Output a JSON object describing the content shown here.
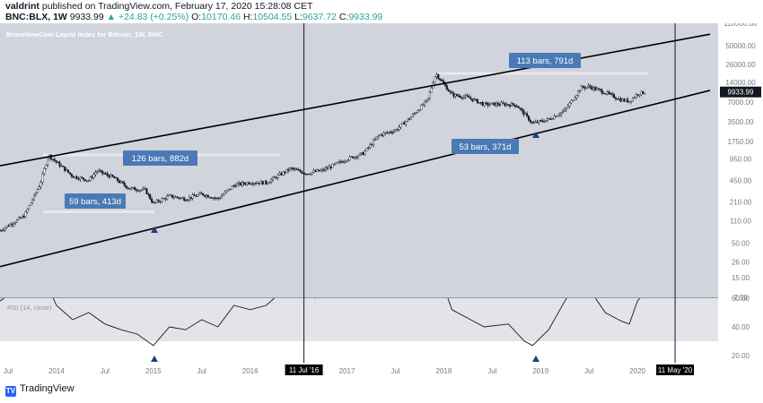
{
  "header": {
    "author": "valdrint",
    "published_text": "published on TradingView.com, February 17, 2020 15:28:08 CET",
    "symbol": "BNC:BLX, 1W",
    "last_price": "9933.99",
    "change": "▲ +24.83 (+0.25%)",
    "open_label": "O:",
    "open": "10170.46",
    "high_label": "H:",
    "high": "10504.55",
    "low_label": "L:",
    "low": "9637.72",
    "close_label": "C:",
    "close": "9933.99"
  },
  "footer": {
    "brand": "TradingView",
    "brand_icon": "tradingview-logo-icon"
  },
  "colors": {
    "pane_bg": "#d1d4dc",
    "rsi_band": "#e2e4ea",
    "annotation_bg": "#4a7ab5",
    "arrow": "#1e3f7a",
    "price_tag_bg": "#131722",
    "marker_bg": "#000000"
  },
  "chart_data": {
    "type": "candlestick",
    "title": "BraveNewCoin Liquid Index for Bitcoin, 1W, BNC",
    "y_scale": "log",
    "ylim": [
      7.5,
      110000
    ],
    "y_ticks": [
      "110000.00",
      "50000.00",
      "26000.00",
      "14000.00",
      "7000.00",
      "3500.00",
      "1750.00",
      "950.00",
      "450.00",
      "210.00",
      "110.00",
      "50.00",
      "26.00",
      "15.00",
      "7.50"
    ],
    "x_ticks": [
      "Jul",
      "2014",
      "Jul",
      "2015",
      "Jul",
      "2016",
      "Jul",
      "2017",
      "Jul",
      "2018",
      "Jul",
      "2019",
      "Jul",
      "2020"
    ],
    "last_price_label": "9933.99",
    "markers": [
      "11 Jul '16",
      "11 May '20"
    ],
    "price_path": [
      {
        "x": "2013-06",
        "y": 78
      },
      {
        "x": "2013-09",
        "y": 130
      },
      {
        "x": "2013-11",
        "y": 400
      },
      {
        "x": "2013-12",
        "y": 1100
      },
      {
        "x": "2014-01",
        "y": 850
      },
      {
        "x": "2014-03",
        "y": 520
      },
      {
        "x": "2014-05",
        "y": 450
      },
      {
        "x": "2014-06",
        "y": 630
      },
      {
        "x": "2014-08",
        "y": 500
      },
      {
        "x": "2014-10",
        "y": 340
      },
      {
        "x": "2014-12",
        "y": 320
      },
      {
        "x": "2015-01",
        "y": 200
      },
      {
        "x": "2015-03",
        "y": 260
      },
      {
        "x": "2015-05",
        "y": 235
      },
      {
        "x": "2015-07",
        "y": 280
      },
      {
        "x": "2015-09",
        "y": 235
      },
      {
        "x": "2015-11",
        "y": 380
      },
      {
        "x": "2016-01",
        "y": 420
      },
      {
        "x": "2016-03",
        "y": 415
      },
      {
        "x": "2016-06",
        "y": 680
      },
      {
        "x": "2016-08",
        "y": 575
      },
      {
        "x": "2016-10",
        "y": 640
      },
      {
        "x": "2017-01",
        "y": 950
      },
      {
        "x": "2017-03",
        "y": 1150
      },
      {
        "x": "2017-05",
        "y": 2200
      },
      {
        "x": "2017-07",
        "y": 2600
      },
      {
        "x": "2017-09",
        "y": 4200
      },
      {
        "x": "2017-11",
        "y": 7500
      },
      {
        "x": "2017-12",
        "y": 19000
      },
      {
        "x": "2018-02",
        "y": 9000
      },
      {
        "x": "2018-04",
        "y": 8200
      },
      {
        "x": "2018-06",
        "y": 6400
      },
      {
        "x": "2018-08",
        "y": 6500
      },
      {
        "x": "2018-10",
        "y": 6300
      },
      {
        "x": "2018-12",
        "y": 3300
      },
      {
        "x": "2019-02",
        "y": 3800
      },
      {
        "x": "2019-04",
        "y": 5200
      },
      {
        "x": "2019-06",
        "y": 11500
      },
      {
        "x": "2019-07",
        "y": 12000
      },
      {
        "x": "2019-09",
        "y": 9700
      },
      {
        "x": "2019-11",
        "y": 7500
      },
      {
        "x": "2019-12",
        "y": 7200
      },
      {
        "x": "2020-01",
        "y": 9300
      },
      {
        "x": "2020-02",
        "y": 9934
      }
    ],
    "channel_upper": [
      {
        "x": "2013-06",
        "y": 750
      },
      {
        "x": "2020-10",
        "y": 75000
      }
    ],
    "channel_lower": [
      {
        "x": "2013-06",
        "y": 22
      },
      {
        "x": "2020-10",
        "y": 10500
      }
    ],
    "rsi": {
      "label": "RSI (14, close)",
      "ylim": [
        15,
        60
      ],
      "y_ticks": [
        "60.00",
        "40.00",
        "20.00"
      ],
      "band": [
        30,
        70
      ],
      "path": [
        {
          "x": "2013-06",
          "y": 58
        },
        {
          "x": "2013-09",
          "y": 70
        },
        {
          "x": "2013-11",
          "y": 80
        },
        {
          "x": "2014-01",
          "y": 55
        },
        {
          "x": "2014-03",
          "y": 45
        },
        {
          "x": "2014-05",
          "y": 50
        },
        {
          "x": "2014-07",
          "y": 42
        },
        {
          "x": "2014-09",
          "y": 38
        },
        {
          "x": "2014-11",
          "y": 35
        },
        {
          "x": "2015-01",
          "y": 27
        },
        {
          "x": "2015-03",
          "y": 40
        },
        {
          "x": "2015-05",
          "y": 38
        },
        {
          "x": "2015-07",
          "y": 45
        },
        {
          "x": "2015-09",
          "y": 40
        },
        {
          "x": "2015-11",
          "y": 55
        },
        {
          "x": "2016-01",
          "y": 52
        },
        {
          "x": "2016-03",
          "y": 55
        },
        {
          "x": "2016-06",
          "y": 70
        },
        {
          "x": "2016-09",
          "y": 60
        },
        {
          "x": "2017-01",
          "y": 70
        },
        {
          "x": "2017-06",
          "y": 75
        },
        {
          "x": "2017-12",
          "y": 85
        },
        {
          "x": "2018-02",
          "y": 52
        },
        {
          "x": "2018-04",
          "y": 46
        },
        {
          "x": "2018-06",
          "y": 40
        },
        {
          "x": "2018-09",
          "y": 42
        },
        {
          "x": "2018-11",
          "y": 30
        },
        {
          "x": "2018-12",
          "y": 27
        },
        {
          "x": "2019-02",
          "y": 38
        },
        {
          "x": "2019-04",
          "y": 58
        },
        {
          "x": "2019-06",
          "y": 75
        },
        {
          "x": "2019-09",
          "y": 50
        },
        {
          "x": "2019-11",
          "y": 44
        },
        {
          "x": "2019-12",
          "y": 42
        },
        {
          "x": "2020-01",
          "y": 58
        },
        {
          "x": "2020-02",
          "y": 65
        }
      ]
    },
    "annotations": [
      {
        "text": "126 bars, 882d"
      },
      {
        "text": "59 bars, 413d"
      },
      {
        "text": "113 bars, 791d"
      },
      {
        "text": "53 bars, 371d"
      }
    ]
  }
}
